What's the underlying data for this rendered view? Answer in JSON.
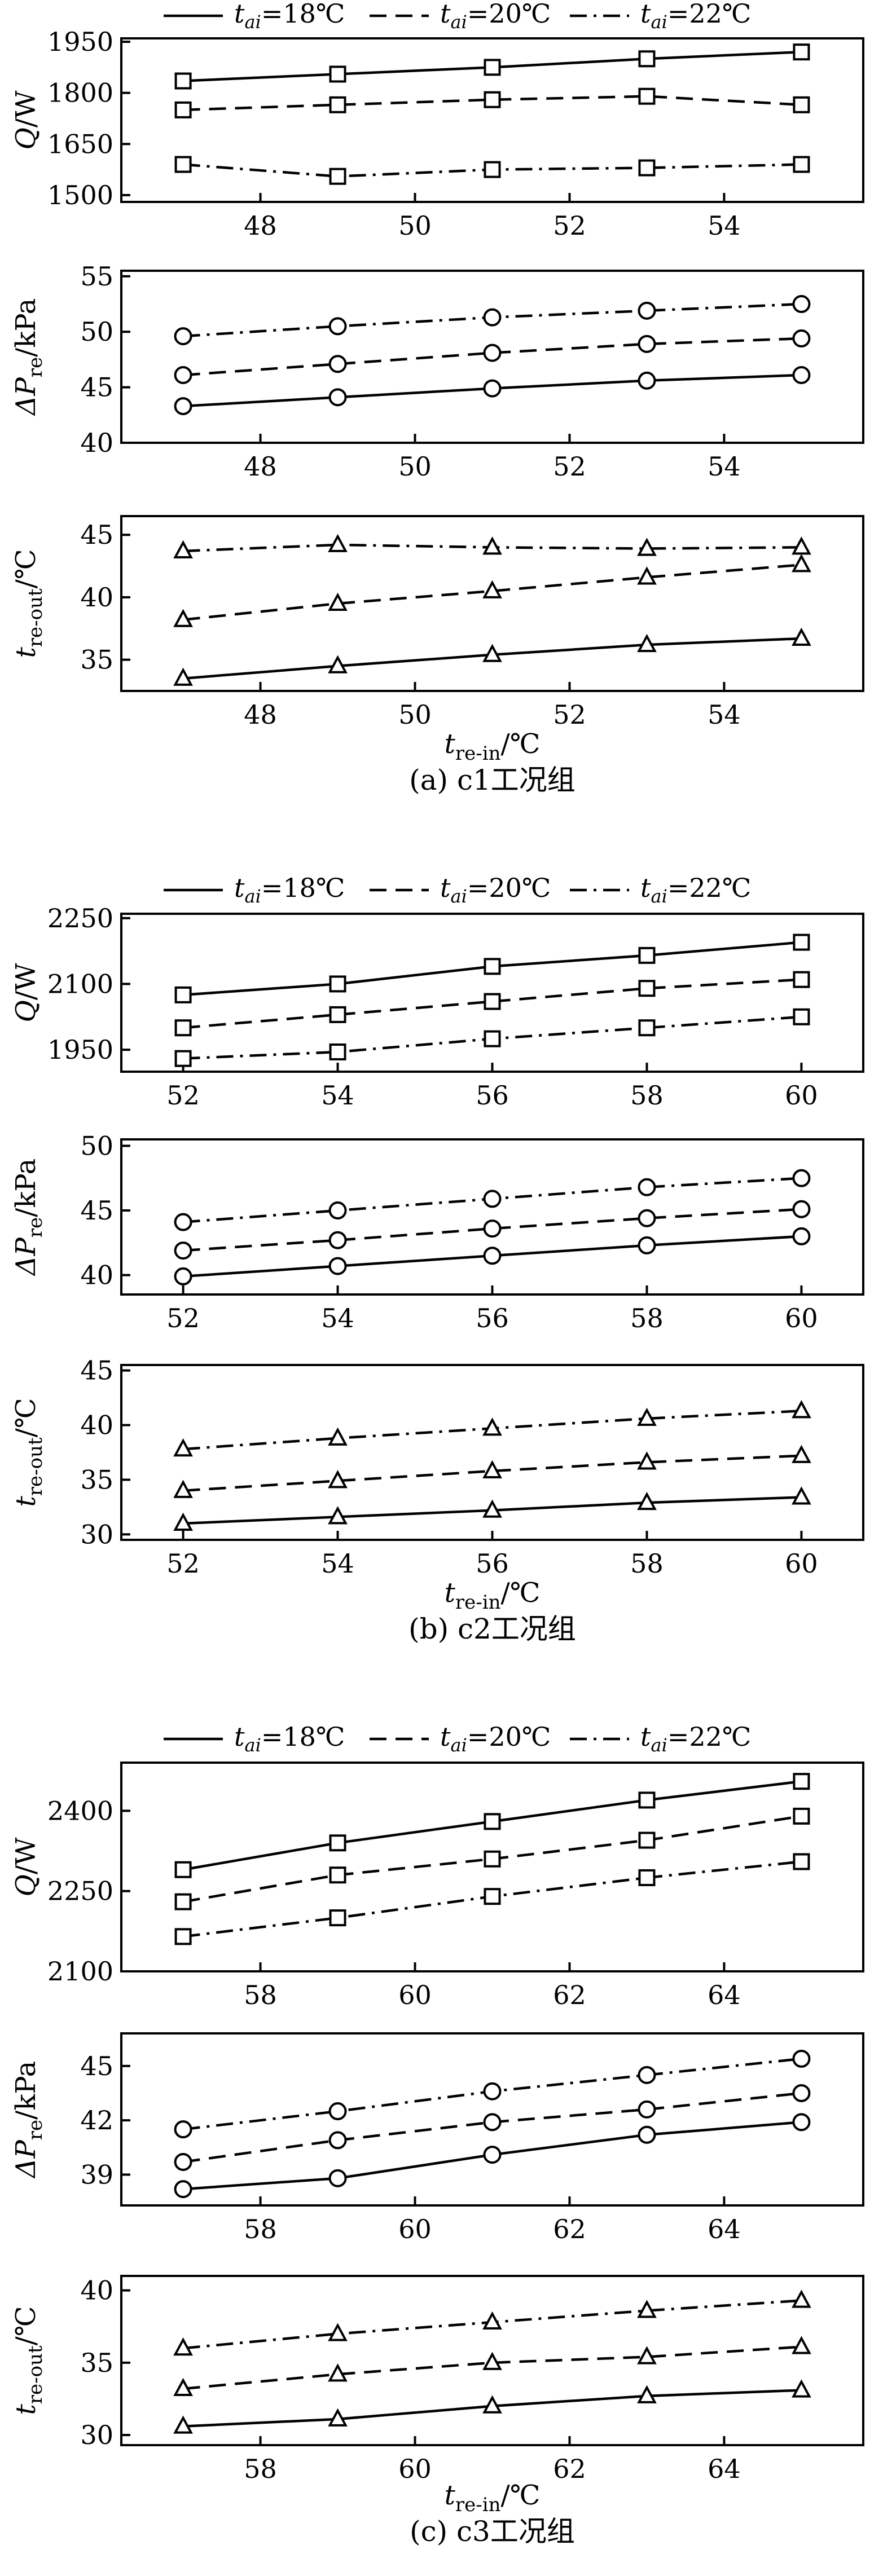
{
  "legend": {
    "prefix": "t",
    "sub": "ai",
    "entries": [
      {
        "value": "=18℃",
        "dash": "solid"
      },
      {
        "value": "=20℃",
        "dash": "dashed"
      },
      {
        "value": "=22℃",
        "dash": "dashdot"
      }
    ]
  },
  "groups": [
    {
      "caption": "(a) c1工况组",
      "xlabel": {
        "main": "t",
        "sub": "re-in",
        "unit": "/℃"
      },
      "chart_data": [
        {
          "type": "line",
          "ylabel": {
            "main": "Q",
            "sub": "",
            "unit": "/W"
          },
          "marker": "square",
          "x": [
            47,
            49,
            51,
            53,
            55
          ],
          "xlim": [
            46.2,
            55.8
          ],
          "xticks": [
            48,
            50,
            52,
            54
          ],
          "ylim": [
            1480,
            1960
          ],
          "yticks": [
            1500,
            1650,
            1800,
            1950
          ],
          "series": [
            {
              "dash": "solid",
              "values": [
                1835,
                1855,
                1875,
                1900,
                1920
              ]
            },
            {
              "dash": "dashed",
              "values": [
                1750,
                1765,
                1780,
                1790,
                1765
              ]
            },
            {
              "dash": "dashdot",
              "values": [
                1590,
                1555,
                1575,
                1580,
                1590
              ]
            }
          ]
        },
        {
          "type": "line",
          "ylabel": {
            "main": "ΔP",
            "sub": "re",
            "unit": "/kPa"
          },
          "marker": "circle",
          "x": [
            47,
            49,
            51,
            53,
            55
          ],
          "xlim": [
            46.2,
            55.8
          ],
          "xticks": [
            48,
            50,
            52,
            54
          ],
          "ylim": [
            40,
            55.5
          ],
          "yticks": [
            40,
            45,
            50,
            55
          ],
          "series": [
            {
              "dash": "solid",
              "values": [
                43.3,
                44.1,
                44.9,
                45.6,
                46.1
              ]
            },
            {
              "dash": "dashed",
              "values": [
                46.1,
                47.1,
                48.1,
                48.9,
                49.4
              ]
            },
            {
              "dash": "dashdot",
              "values": [
                49.6,
                50.5,
                51.3,
                51.9,
                52.5
              ]
            }
          ]
        },
        {
          "type": "line",
          "ylabel": {
            "main": "t",
            "sub": "re-out",
            "unit": "/℃"
          },
          "marker": "triangle",
          "x": [
            47,
            49,
            51,
            53,
            55
          ],
          "xlim": [
            46.2,
            55.8
          ],
          "xticks": [
            48,
            50,
            52,
            54
          ],
          "ylim": [
            32.5,
            46.5
          ],
          "yticks": [
            35,
            40,
            45
          ],
          "series": [
            {
              "dash": "solid",
              "values": [
                33.5,
                34.5,
                35.4,
                36.2,
                36.7
              ]
            },
            {
              "dash": "dashed",
              "values": [
                38.2,
                39.5,
                40.5,
                41.6,
                42.6
              ]
            },
            {
              "dash": "dashdot",
              "values": [
                43.7,
                44.2,
                44.0,
                43.9,
                44.0
              ]
            }
          ]
        }
      ]
    },
    {
      "caption": "(b) c2工况组",
      "xlabel": {
        "main": "t",
        "sub": "re-in",
        "unit": "/℃"
      },
      "chart_data": [
        {
          "type": "line",
          "ylabel": {
            "main": "Q",
            "sub": "",
            "unit": "/W"
          },
          "marker": "square",
          "x": [
            52,
            54,
            56,
            58,
            60
          ],
          "xlim": [
            51.2,
            60.8
          ],
          "xticks": [
            52,
            54,
            56,
            58,
            60
          ],
          "ylim": [
            1900,
            2260
          ],
          "yticks": [
            1950,
            2100,
            2250
          ],
          "series": [
            {
              "dash": "solid",
              "values": [
                2075,
                2100,
                2140,
                2165,
                2195
              ]
            },
            {
              "dash": "dashed",
              "values": [
                2000,
                2030,
                2060,
                2090,
                2110
              ]
            },
            {
              "dash": "dashdot",
              "values": [
                1930,
                1945,
                1975,
                2000,
                2025
              ]
            }
          ]
        },
        {
          "type": "line",
          "ylabel": {
            "main": "ΔP",
            "sub": "re",
            "unit": "/kPa"
          },
          "marker": "circle",
          "x": [
            52,
            54,
            56,
            58,
            60
          ],
          "xlim": [
            51.2,
            60.8
          ],
          "xticks": [
            52,
            54,
            56,
            58,
            60
          ],
          "ylim": [
            38.5,
            50.5
          ],
          "yticks": [
            40,
            45,
            50
          ],
          "series": [
            {
              "dash": "solid",
              "values": [
                39.9,
                40.7,
                41.5,
                42.3,
                43.0
              ]
            },
            {
              "dash": "dashed",
              "values": [
                41.9,
                42.7,
                43.6,
                44.4,
                45.1
              ]
            },
            {
              "dash": "dashdot",
              "values": [
                44.1,
                45.0,
                45.9,
                46.8,
                47.5
              ]
            }
          ]
        },
        {
          "type": "line",
          "ylabel": {
            "main": "t",
            "sub": "re-out",
            "unit": "/℃"
          },
          "marker": "triangle",
          "x": [
            52,
            54,
            56,
            58,
            60
          ],
          "xlim": [
            51.2,
            60.8
          ],
          "xticks": [
            52,
            54,
            56,
            58,
            60
          ],
          "ylim": [
            29.5,
            45.5
          ],
          "yticks": [
            30,
            35,
            40,
            45
          ],
          "series": [
            {
              "dash": "solid",
              "values": [
                31.0,
                31.6,
                32.2,
                32.9,
                33.4
              ]
            },
            {
              "dash": "dashed",
              "values": [
                34.0,
                34.9,
                35.8,
                36.6,
                37.2
              ]
            },
            {
              "dash": "dashdot",
              "values": [
                37.8,
                38.8,
                39.7,
                40.6,
                41.3
              ]
            }
          ]
        }
      ]
    },
    {
      "caption": "(c) c3工况组",
      "xlabel": {
        "main": "t",
        "sub": "re-in",
        "unit": "/℃"
      },
      "chart_data": [
        {
          "type": "line",
          "ylabel": {
            "main": "Q",
            "sub": "",
            "unit": "/W"
          },
          "marker": "square",
          "x": [
            57,
            59,
            61,
            63,
            65
          ],
          "xlim": [
            56.2,
            65.8
          ],
          "xticks": [
            58,
            60,
            62,
            64
          ],
          "ylim": [
            2100,
            2490
          ],
          "yticks": [
            2100,
            2250,
            2400
          ],
          "series": [
            {
              "dash": "solid",
              "values": [
                2290,
                2340,
                2380,
                2420,
                2455
              ]
            },
            {
              "dash": "dashed",
              "values": [
                2230,
                2280,
                2310,
                2345,
                2390
              ]
            },
            {
              "dash": "dashdot",
              "values": [
                2165,
                2200,
                2240,
                2275,
                2305
              ]
            }
          ]
        },
        {
          "type": "line",
          "ylabel": {
            "main": "ΔP",
            "sub": "re",
            "unit": "/kPa"
          },
          "marker": "circle",
          "x": [
            57,
            59,
            61,
            63,
            65
          ],
          "xlim": [
            56.2,
            65.8
          ],
          "xticks": [
            58,
            60,
            62,
            64
          ],
          "ylim": [
            37.3,
            46.8
          ],
          "yticks": [
            39,
            42,
            45
          ],
          "series": [
            {
              "dash": "solid",
              "values": [
                38.2,
                38.8,
                40.1,
                41.2,
                41.9
              ]
            },
            {
              "dash": "dashed",
              "values": [
                39.7,
                40.9,
                41.9,
                42.6,
                43.5
              ]
            },
            {
              "dash": "dashdot",
              "values": [
                41.5,
                42.5,
                43.6,
                44.5,
                45.4
              ]
            }
          ]
        },
        {
          "type": "line",
          "ylabel": {
            "main": "t",
            "sub": "re-out",
            "unit": "/℃"
          },
          "marker": "triangle",
          "x": [
            57,
            59,
            61,
            63,
            65
          ],
          "xlim": [
            56.2,
            65.8
          ],
          "xticks": [
            58,
            60,
            62,
            64
          ],
          "ylim": [
            29.3,
            41
          ],
          "yticks": [
            30,
            35,
            40
          ],
          "series": [
            {
              "dash": "solid",
              "values": [
                30.6,
                31.1,
                32.0,
                32.7,
                33.1
              ]
            },
            {
              "dash": "dashed",
              "values": [
                33.2,
                34.2,
                35.0,
                35.4,
                36.1
              ]
            },
            {
              "dash": "dashdot",
              "values": [
                36.0,
                37.0,
                37.8,
                38.6,
                39.3
              ]
            }
          ]
        }
      ]
    }
  ]
}
